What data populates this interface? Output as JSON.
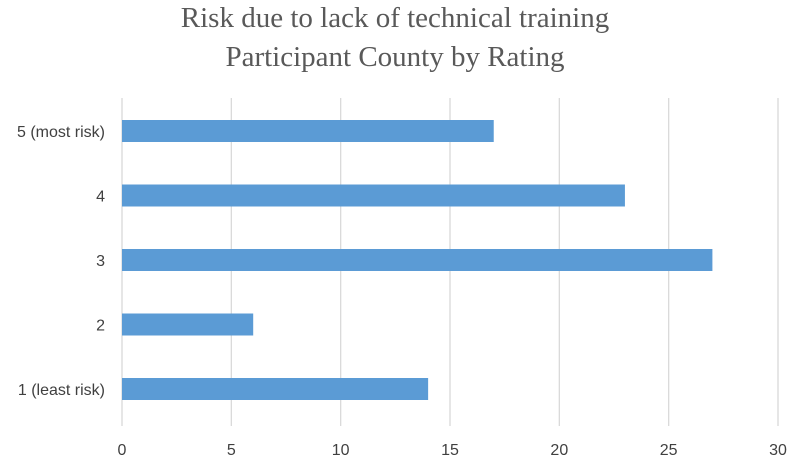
{
  "chart_data": {
    "type": "bar",
    "orientation": "horizontal",
    "title": [
      "Risk due to lack of technical training",
      "Participant County by Rating"
    ],
    "xlabel": "",
    "ylabel": "",
    "categories": [
      "5 (most risk)",
      "4",
      "3",
      "2",
      "1 (least risk)"
    ],
    "values": [
      17,
      23,
      27,
      6,
      14
    ],
    "xlim": [
      0,
      30
    ],
    "xticks": [
      "0",
      "5",
      "10",
      "15",
      "20",
      "25",
      "30"
    ],
    "grid": "vertical",
    "bar_color": "#5b9bd5"
  }
}
